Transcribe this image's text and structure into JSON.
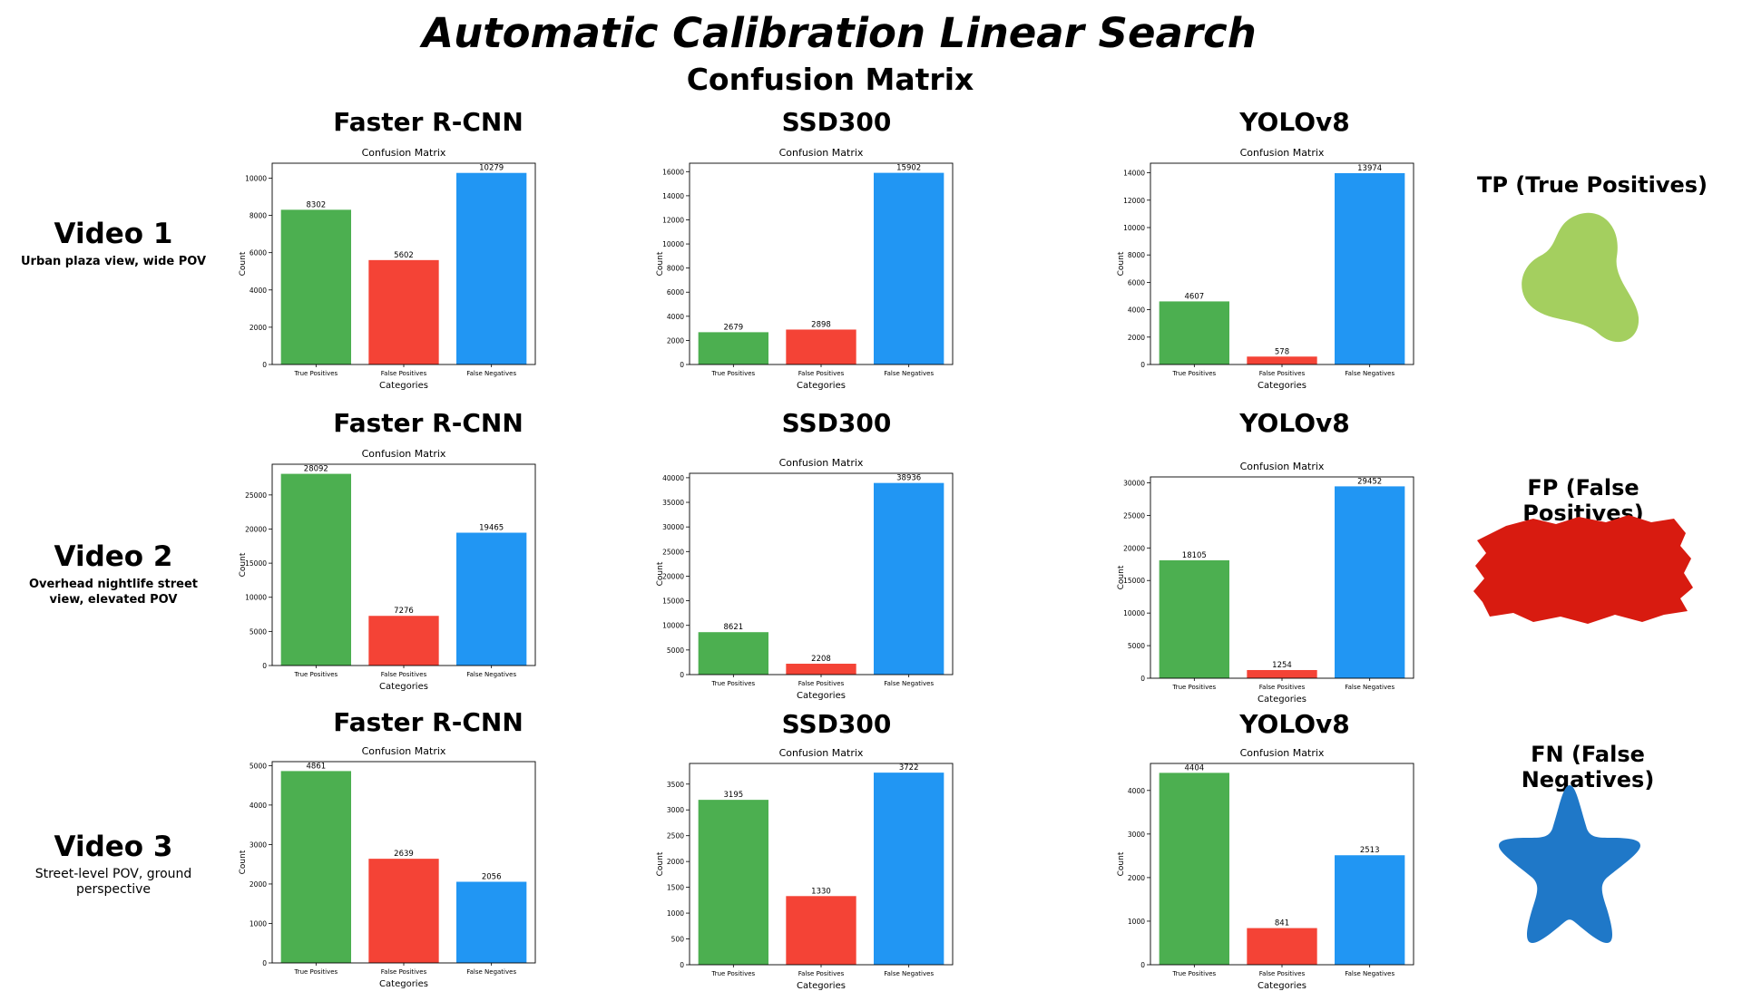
{
  "header": {
    "title": "Automatic Calibration Linear Search",
    "subtitle": "Confusion Matrix"
  },
  "rows": [
    {
      "video": "Video 1",
      "description": "Urban plaza view, wide  POV"
    },
    {
      "video": "Video 2",
      "description": "Overhead nightlife street view, elevated POV"
    },
    {
      "video": "Video 3",
      "description": "Street-level POV, ground perspective"
    }
  ],
  "models": [
    "Faster R-CNN",
    "SSD300",
    "YOLOv8"
  ],
  "legend": [
    {
      "label": "TP (True Positives)",
      "color": "#a4cf5f",
      "icon": "green-blob"
    },
    {
      "label": "FP (False Positives)",
      "color": "#d81b10",
      "icon": "red-brush-stroke"
    },
    {
      "label": "FN (False Negatives)",
      "color": "#1f78c8",
      "icon": "blue-star"
    }
  ],
  "colors": {
    "tp": "#4caf50",
    "fp": "#f44336",
    "fn": "#2196f3"
  },
  "chart_data": [
    {
      "type": "bar",
      "row": 0,
      "col": 0,
      "model": "Faster R-CNN",
      "title": "Confusion Matrix",
      "xlabel": "Categories",
      "ylabel": "Count",
      "categories": [
        "True Positives",
        "False Positives",
        "False Negatives"
      ],
      "values": [
        8302,
        5602,
        10279
      ],
      "ylim": [
        0,
        10800
      ],
      "yticks": [
        0,
        2000,
        4000,
        6000,
        8000,
        10000
      ]
    },
    {
      "type": "bar",
      "row": 0,
      "col": 1,
      "model": "SSD300",
      "title": "Confusion Matrix",
      "xlabel": "Categories",
      "ylabel": "Count",
      "categories": [
        "True Positives",
        "False Positives",
        "False Negatives"
      ],
      "values": [
        2679,
        2898,
        15902
      ],
      "ylim": [
        0,
        16700
      ],
      "yticks": [
        0,
        2000,
        4000,
        6000,
        8000,
        10000,
        12000,
        14000,
        16000
      ]
    },
    {
      "type": "bar",
      "row": 0,
      "col": 2,
      "model": "YOLOv8",
      "title": "Confusion Matrix",
      "xlabel": "Categories",
      "ylabel": "Count",
      "categories": [
        "True Positives",
        "False Positives",
        "False Negatives"
      ],
      "values": [
        4607,
        578,
        13974
      ],
      "ylim": [
        0,
        14700
      ],
      "yticks": [
        0,
        2000,
        4000,
        6000,
        8000,
        10000,
        12000,
        14000
      ]
    },
    {
      "type": "bar",
      "row": 1,
      "col": 0,
      "model": "Faster R-CNN",
      "title": "Confusion Matrix",
      "xlabel": "Categories",
      "ylabel": "Count",
      "categories": [
        "True Positives",
        "False Positives",
        "False Negatives"
      ],
      "values": [
        28092,
        7276,
        19465
      ],
      "ylim": [
        0,
        29500
      ],
      "yticks": [
        0,
        5000,
        10000,
        15000,
        20000,
        25000
      ]
    },
    {
      "type": "bar",
      "row": 1,
      "col": 1,
      "model": "SSD300",
      "title": "Confusion Matrix",
      "xlabel": "Categories",
      "ylabel": "Count",
      "categories": [
        "True Positives",
        "False Positives",
        "False Negatives"
      ],
      "values": [
        8621,
        2208,
        38936
      ],
      "ylim": [
        0,
        40900
      ],
      "yticks": [
        0,
        5000,
        10000,
        15000,
        20000,
        25000,
        30000,
        35000,
        40000
      ]
    },
    {
      "type": "bar",
      "row": 1,
      "col": 2,
      "model": "YOLOv8",
      "title": "Confusion Matrix",
      "xlabel": "Categories",
      "ylabel": "Count",
      "categories": [
        "True Positives",
        "False Positives",
        "False Negatives"
      ],
      "values": [
        18105,
        1254,
        29452
      ],
      "ylim": [
        0,
        30900
      ],
      "yticks": [
        0,
        5000,
        10000,
        15000,
        20000,
        25000,
        30000
      ]
    },
    {
      "type": "bar",
      "row": 2,
      "col": 0,
      "model": "Faster R-CNN",
      "title": "Confusion Matrix",
      "xlabel": "Categories",
      "ylabel": "Count",
      "categories": [
        "True Positives",
        "False Positives",
        "False Negatives"
      ],
      "values": [
        4861,
        2639,
        2056
      ],
      "ylim": [
        0,
        5100
      ],
      "yticks": [
        0,
        1000,
        2000,
        3000,
        4000,
        5000
      ]
    },
    {
      "type": "bar",
      "row": 2,
      "col": 1,
      "model": "SSD300",
      "title": "Confusion Matrix",
      "xlabel": "Categories",
      "ylabel": "Count",
      "categories": [
        "True Positives",
        "False Positives",
        "False Negatives"
      ],
      "values": [
        3195,
        1330,
        3722
      ],
      "ylim": [
        0,
        3900
      ],
      "yticks": [
        0,
        500,
        1000,
        1500,
        2000,
        2500,
        3000,
        3500
      ]
    },
    {
      "type": "bar",
      "row": 2,
      "col": 2,
      "model": "YOLOv8",
      "title": "Confusion Matrix",
      "xlabel": "Categories",
      "ylabel": "Count",
      "categories": [
        "True Positives",
        "False Positives",
        "False Negatives"
      ],
      "values": [
        4404,
        841,
        2513
      ],
      "ylim": [
        0,
        4620
      ],
      "yticks": [
        0,
        1000,
        2000,
        3000,
        4000
      ]
    }
  ]
}
